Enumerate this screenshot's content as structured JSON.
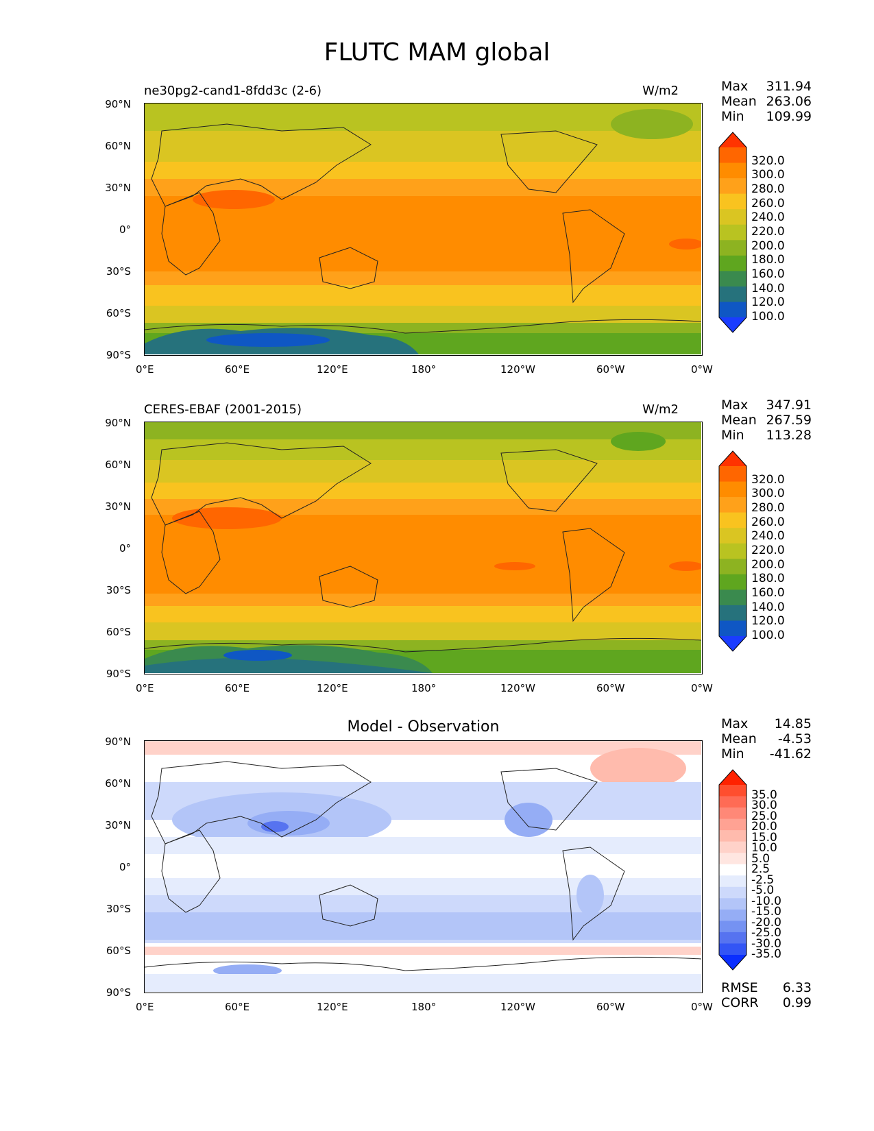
{
  "figure": {
    "title": "FLUTC MAM global"
  },
  "lat_ticks": [
    "90°N",
    "60°N",
    "30°N",
    "0°",
    "30°S",
    "60°S",
    "90°S"
  ],
  "lon_ticks": [
    "0°E",
    "60°E",
    "120°E",
    "180°",
    "120°W",
    "60°W",
    "0°W"
  ],
  "panels": [
    {
      "left_title": "ne30pg2-cand1-8fdd3c (2-6)",
      "center_title": "",
      "units": "W/m2",
      "stats": {
        "max_label": "Max",
        "max": "311.94",
        "mean_label": "Mean",
        "mean": "263.06",
        "min_label": "Min",
        "min": "109.99"
      },
      "colorbar": {
        "labels": [
          "320.0",
          "300.0",
          "280.0",
          "260.0",
          "240.0",
          "220.0",
          "200.0",
          "180.0",
          "160.0",
          "140.0",
          "120.0",
          "100.0"
        ],
        "colors": [
          "#ff3300",
          "#ff6600",
          "#ff8c00",
          "#ffa11a",
          "#f9c31f",
          "#dac522",
          "#b9c321",
          "#8db321",
          "#5fa61f",
          "#3a8a4e",
          "#26727c",
          "#0f57c4",
          "#1a3cff"
        ]
      }
    },
    {
      "left_title": "CERES-EBAF (2001-2015)",
      "center_title": "",
      "units": "W/m2",
      "stats": {
        "max_label": "Max",
        "max": "347.91",
        "mean_label": "Mean",
        "mean": "267.59",
        "min_label": "Min",
        "min": "113.28"
      },
      "colorbar": {
        "labels": [
          "320.0",
          "300.0",
          "280.0",
          "260.0",
          "240.0",
          "220.0",
          "200.0",
          "180.0",
          "160.0",
          "140.0",
          "120.0",
          "100.0"
        ],
        "colors": [
          "#ff3300",
          "#ff6600",
          "#ff8c00",
          "#ffa11a",
          "#f9c31f",
          "#dac522",
          "#b9c321",
          "#8db321",
          "#5fa61f",
          "#3a8a4e",
          "#26727c",
          "#0f57c4",
          "#1a3cff"
        ]
      }
    },
    {
      "left_title": "",
      "center_title": "Model - Observation",
      "units": "",
      "stats": {
        "max_label": "Max",
        "max": "14.85",
        "mean_label": "Mean",
        "mean": "-4.53",
        "min_label": "Min",
        "min": "-41.62"
      },
      "colorbar": {
        "labels": [
          "35.0",
          "30.0",
          "25.0",
          "20.0",
          "15.0",
          "10.0",
          "5.0",
          "2.5",
          "-2.5",
          "-5.0",
          "-10.0",
          "-15.0",
          "-20.0",
          "-25.0",
          "-30.0",
          "-35.0"
        ],
        "colors": [
          "#ff2200",
          "#ff4e2e",
          "#ff6b55",
          "#ff8877",
          "#ffa293",
          "#ffbbad",
          "#ffd2c9",
          "#ffe6e1",
          "#ffffff",
          "#e5ecfd",
          "#cdd9fb",
          "#b3c5f8",
          "#95adf5",
          "#7592f2",
          "#5673f0",
          "#3355f5",
          "#0a2eff"
        ]
      },
      "rmse_label": "RMSE",
      "rmse": "6.33",
      "corr_label": "CORR",
      "corr": "0.99"
    }
  ]
}
